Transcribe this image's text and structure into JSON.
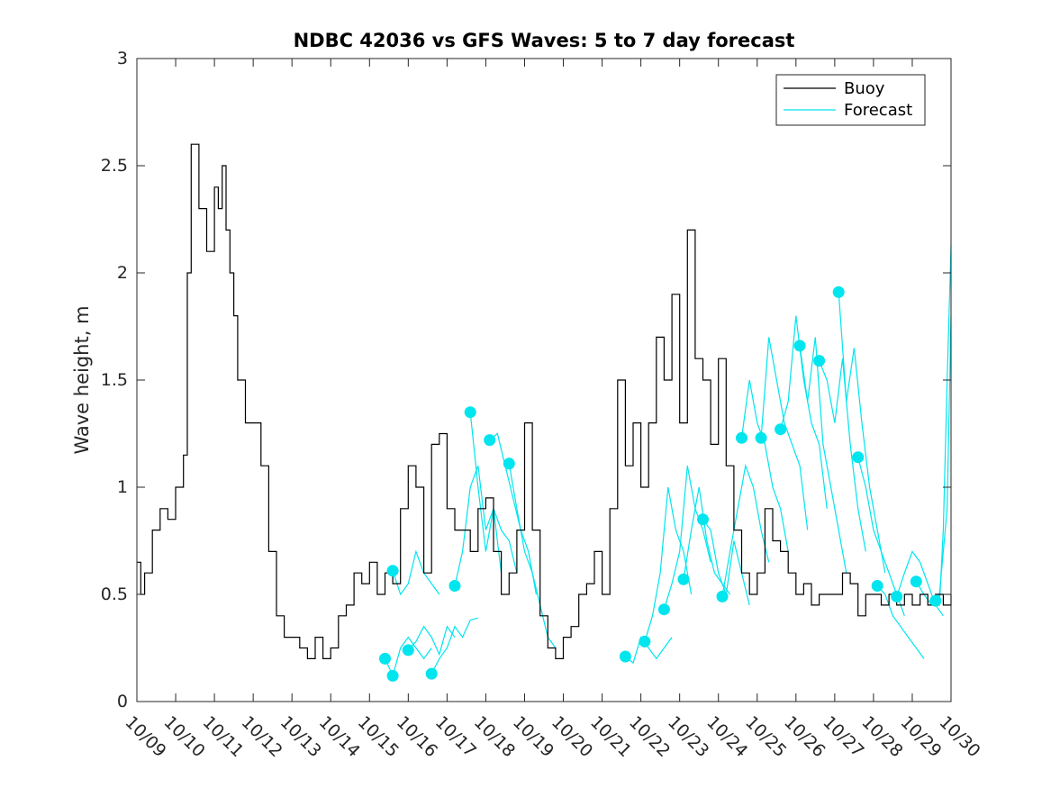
{
  "chart_data": {
    "type": "line",
    "title": "NDBC 42036 vs GFS Waves: 5 to 7 day forecast",
    "xlabel": "",
    "ylabel": "Wave height, m",
    "xlim": [
      0,
      21
    ],
    "ylim": [
      0,
      3
    ],
    "grid": false,
    "legend_position": "top-right",
    "x_tick_labels": [
      "10/09",
      "10/10",
      "10/11",
      "10/12",
      "10/13",
      "10/14",
      "10/15",
      "10/16",
      "10/17",
      "10/18",
      "10/19",
      "10/20",
      "10/21",
      "10/22",
      "10/23",
      "10/24",
      "10/25",
      "10/26",
      "10/27",
      "10/28",
      "10/29",
      "10/30"
    ],
    "y_ticks": [
      0,
      0.5,
      1,
      1.5,
      2,
      2.5,
      3
    ],
    "y_tick_labels": [
      "0",
      "0.5",
      "1",
      "1.5",
      "2",
      "2.5",
      "3"
    ],
    "colors": {
      "buoy": "#000000",
      "forecast": "#00e5ee"
    },
    "series": [
      {
        "name": "Buoy",
        "x": [
          0.0,
          0.1,
          0.2,
          0.4,
          0.6,
          0.8,
          1.0,
          1.2,
          1.3,
          1.4,
          1.6,
          1.8,
          2.0,
          2.1,
          2.2,
          2.3,
          2.4,
          2.5,
          2.6,
          2.8,
          3.0,
          3.2,
          3.4,
          3.6,
          3.8,
          4.0,
          4.2,
          4.4,
          4.6,
          4.8,
          5.0,
          5.2,
          5.4,
          5.6,
          5.8,
          6.0,
          6.2,
          6.4,
          6.6,
          6.8,
          7.0,
          7.2,
          7.4,
          7.6,
          7.8,
          8.0,
          8.2,
          8.4,
          8.6,
          8.8,
          9.0,
          9.2,
          9.4,
          9.6,
          9.8,
          10.0,
          10.2,
          10.4,
          10.6,
          10.8,
          11.0,
          11.2,
          11.4,
          11.6,
          11.8,
          12.0,
          12.2,
          12.4,
          12.6,
          12.8,
          13.0,
          13.2,
          13.4,
          13.6,
          13.8,
          14.0,
          14.2,
          14.4,
          14.6,
          14.8,
          15.0,
          15.2,
          15.4,
          15.6,
          15.8,
          16.0,
          16.2,
          16.4,
          16.6,
          16.8,
          17.0,
          17.2,
          17.4,
          17.6,
          17.8,
          18.0,
          18.2,
          18.4,
          18.6,
          18.8,
          19.0,
          19.2,
          19.4,
          19.6,
          19.8,
          20.0,
          20.2,
          20.4,
          20.6,
          20.8,
          21.0
        ],
        "values": [
          0.65,
          0.5,
          0.6,
          0.8,
          0.9,
          0.85,
          1.0,
          1.15,
          2.0,
          2.6,
          2.3,
          2.1,
          2.4,
          2.3,
          2.5,
          2.2,
          2.0,
          1.8,
          1.5,
          1.3,
          1.3,
          1.1,
          0.7,
          0.4,
          0.3,
          0.3,
          0.25,
          0.2,
          0.3,
          0.2,
          0.25,
          0.4,
          0.45,
          0.6,
          0.55,
          0.65,
          0.5,
          0.6,
          0.55,
          0.9,
          1.1,
          1.0,
          0.6,
          1.2,
          1.25,
          0.9,
          0.8,
          0.8,
          0.7,
          0.9,
          0.95,
          0.7,
          0.5,
          0.6,
          0.8,
          1.3,
          0.8,
          0.4,
          0.25,
          0.2,
          0.3,
          0.35,
          0.5,
          0.55,
          0.7,
          0.5,
          0.9,
          1.5,
          1.1,
          1.3,
          1.0,
          1.3,
          1.7,
          1.5,
          1.9,
          1.3,
          2.2,
          1.6,
          1.5,
          1.2,
          1.6,
          1.1,
          0.8,
          0.6,
          0.5,
          0.6,
          0.9,
          0.75,
          0.7,
          0.6,
          0.5,
          0.55,
          0.45,
          0.5,
          0.5,
          0.5,
          0.6,
          0.55,
          0.4,
          0.5,
          0.5,
          0.45,
          0.5,
          0.45,
          0.5,
          0.45,
          0.5,
          0.45,
          0.5,
          0.45,
          0.5
        ]
      },
      {
        "name": "Forecast",
        "segments": [
          {
            "x": [
              6.4,
              6.6,
              6.8,
              7.0,
              7.2,
              7.4,
              7.6
            ],
            "values": [
              0.2,
              0.12,
              0.25,
              0.3,
              0.25,
              0.2,
              0.25
            ]
          },
          {
            "x": [
              6.6,
              6.8,
              7.0,
              7.2,
              7.4,
              7.6,
              7.8
            ],
            "values": [
              0.61,
              0.5,
              0.55,
              0.7,
              0.6,
              0.55,
              0.5
            ]
          },
          {
            "x": [
              7.0,
              7.2,
              7.4,
              7.6,
              7.8,
              8.0,
              8.2
            ],
            "values": [
              0.24,
              0.28,
              0.35,
              0.3,
              0.22,
              0.35,
              0.3
            ]
          },
          {
            "x": [
              7.6,
              7.8,
              8.0,
              8.2,
              8.4,
              8.6,
              8.8
            ],
            "values": [
              0.13,
              0.2,
              0.25,
              0.35,
              0.3,
              0.38,
              0.39
            ]
          },
          {
            "x": [
              8.2,
              8.4,
              8.6,
              8.8,
              9.0,
              9.2,
              9.4
            ],
            "values": [
              0.54,
              0.7,
              1.0,
              1.1,
              0.8,
              0.9,
              0.6
            ]
          },
          {
            "x": [
              8.6,
              8.8,
              9.0,
              9.2,
              9.4,
              9.6,
              9.8
            ],
            "values": [
              1.35,
              1.0,
              0.7,
              0.9,
              0.8,
              0.75,
              0.6
            ]
          },
          {
            "x": [
              9.1,
              9.3,
              9.5,
              9.7,
              9.9,
              10.1,
              10.3
            ],
            "values": [
              1.22,
              1.25,
              1.1,
              0.95,
              0.8,
              0.7,
              0.5
            ]
          },
          {
            "x": [
              9.6,
              9.8,
              10.0,
              10.2,
              10.4,
              10.6,
              10.8
            ],
            "values": [
              1.11,
              0.9,
              0.7,
              0.6,
              0.45,
              0.3,
              0.25
            ]
          },
          {
            "x": [
              12.6,
              12.8,
              13.0,
              13.2,
              13.4,
              13.6,
              13.8
            ],
            "values": [
              0.21,
              0.18,
              0.3,
              0.25,
              0.2,
              0.25,
              0.3
            ]
          },
          {
            "x": [
              13.1,
              13.3,
              13.5,
              13.7,
              13.9,
              14.1,
              14.3
            ],
            "values": [
              0.28,
              0.4,
              0.6,
              1.0,
              0.8,
              0.7,
              0.5
            ]
          },
          {
            "x": [
              13.6,
              13.8,
              14.0,
              14.2,
              14.4,
              14.6,
              14.8
            ],
            "values": [
              0.43,
              0.55,
              0.7,
              1.1,
              0.9,
              0.8,
              0.65
            ]
          },
          {
            "x": [
              14.1,
              14.3,
              14.5,
              14.7,
              14.9,
              15.1,
              15.3
            ],
            "values": [
              0.57,
              0.8,
              1.0,
              0.75,
              0.6,
              0.55,
              0.5
            ]
          },
          {
            "x": [
              14.6,
              14.8,
              15.0,
              15.2,
              15.4,
              15.6,
              15.8
            ],
            "values": [
              0.85,
              0.8,
              0.6,
              0.5,
              0.75,
              0.6,
              0.45
            ]
          },
          {
            "x": [
              15.1,
              15.3,
              15.5,
              15.7,
              15.9,
              16.1,
              16.3
            ],
            "values": [
              0.49,
              0.7,
              0.9,
              1.1,
              1.0,
              0.8,
              0.65
            ]
          },
          {
            "x": [
              15.6,
              15.8,
              16.0,
              16.2,
              16.4,
              16.6,
              16.8
            ],
            "values": [
              1.23,
              1.5,
              1.3,
              1.2,
              1.0,
              0.9,
              0.7
            ]
          },
          {
            "x": [
              16.1,
              16.3,
              16.5,
              16.7,
              16.9,
              17.1,
              17.3
            ],
            "values": [
              1.23,
              1.7,
              1.5,
              1.3,
              1.2,
              1.1,
              0.8
            ]
          },
          {
            "x": [
              16.6,
              16.8,
              17.0,
              17.2,
              17.4,
              17.6,
              17.8
            ],
            "values": [
              1.27,
              1.4,
              1.8,
              1.5,
              1.3,
              1.2,
              0.9
            ]
          },
          {
            "x": [
              17.1,
              17.3,
              17.5,
              17.7,
              17.9,
              18.1,
              18.3
            ],
            "values": [
              1.66,
              1.4,
              1.7,
              1.2,
              1.0,
              0.8,
              0.6
            ]
          },
          {
            "x": [
              17.6,
              17.8,
              18.0,
              18.2,
              18.4,
              18.6,
              18.8
            ],
            "values": [
              1.59,
              1.5,
              1.3,
              1.6,
              1.2,
              0.9,
              0.7
            ]
          },
          {
            "x": [
              18.1,
              18.3,
              18.5,
              18.7,
              18.9,
              19.1,
              19.3
            ],
            "values": [
              1.91,
              1.4,
              1.65,
              1.3,
              1.0,
              0.8,
              0.6
            ]
          },
          {
            "x": [
              18.6,
              18.8,
              19.0,
              19.2,
              19.4,
              19.6,
              19.8
            ],
            "values": [
              1.14,
              1.0,
              0.8,
              0.7,
              0.6,
              0.5,
              0.4
            ]
          },
          {
            "x": [
              19.1,
              19.3,
              19.5,
              19.7,
              19.9,
              20.1,
              20.3
            ],
            "values": [
              0.54,
              0.5,
              0.4,
              0.35,
              0.3,
              0.25,
              0.2
            ]
          },
          {
            "x": [
              19.6,
              19.8,
              20.0,
              20.2,
              20.4,
              20.6,
              20.8
            ],
            "values": [
              0.49,
              0.6,
              0.7,
              0.65,
              0.55,
              0.45,
              0.4
            ]
          },
          {
            "x": [
              20.1,
              20.3,
              20.5,
              20.7,
              20.9,
              21.0
            ],
            "values": [
              0.56,
              0.5,
              0.45,
              0.5,
              0.9,
              1.8
            ]
          },
          {
            "x": [
              20.6,
              20.7,
              20.8,
              20.9,
              21.0
            ],
            "values": [
              0.47,
              0.45,
              0.8,
              1.5,
              2.13
            ]
          }
        ],
        "marker_points": [
          {
            "x": 6.4,
            "value": 0.2
          },
          {
            "x": 6.6,
            "value": 0.12
          },
          {
            "x": 6.6,
            "value": 0.61
          },
          {
            "x": 7.0,
            "value": 0.24
          },
          {
            "x": 7.6,
            "value": 0.13
          },
          {
            "x": 8.2,
            "value": 0.54
          },
          {
            "x": 8.6,
            "value": 1.35
          },
          {
            "x": 9.1,
            "value": 1.22
          },
          {
            "x": 9.6,
            "value": 1.11
          },
          {
            "x": 12.6,
            "value": 0.21
          },
          {
            "x": 13.1,
            "value": 0.28
          },
          {
            "x": 13.6,
            "value": 0.43
          },
          {
            "x": 14.1,
            "value": 0.57
          },
          {
            "x": 14.6,
            "value": 0.85
          },
          {
            "x": 15.1,
            "value": 0.49
          },
          {
            "x": 15.6,
            "value": 1.23
          },
          {
            "x": 16.1,
            "value": 1.23
          },
          {
            "x": 16.6,
            "value": 1.27
          },
          {
            "x": 17.1,
            "value": 1.66
          },
          {
            "x": 17.6,
            "value": 1.59
          },
          {
            "x": 18.1,
            "value": 1.91
          },
          {
            "x": 18.6,
            "value": 1.14
          },
          {
            "x": 19.1,
            "value": 0.54
          },
          {
            "x": 19.6,
            "value": 0.49
          },
          {
            "x": 20.1,
            "value": 0.56
          },
          {
            "x": 20.6,
            "value": 0.47
          }
        ]
      }
    ],
    "legend": [
      {
        "label": "Buoy",
        "series": "buoy"
      },
      {
        "label": "Forecast",
        "series": "forecast"
      }
    ]
  }
}
